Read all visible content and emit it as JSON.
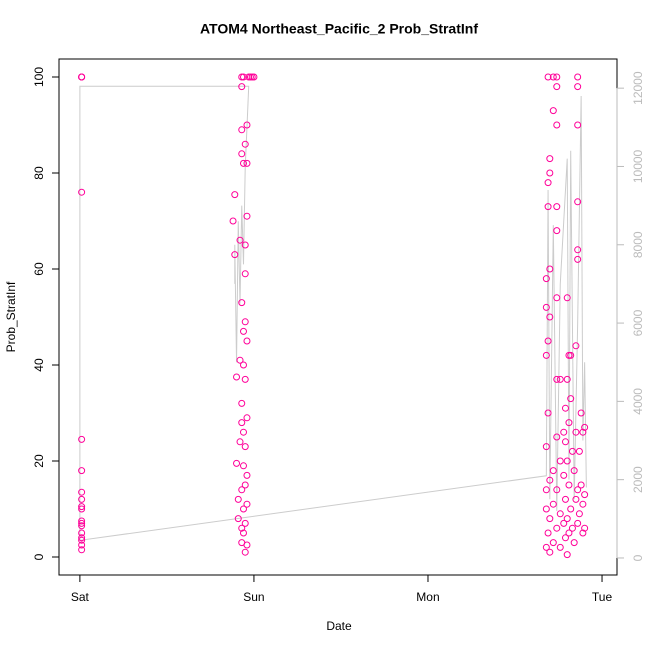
{
  "chart_data": {
    "type": "scatter",
    "title": "ATOM4 Northeast_Pacific_2 Prob_StratInf",
    "x_label": "Date",
    "y_label": "Prob_StratInf",
    "xlim": [
      -0.12,
      3.086
    ],
    "xticks": [
      {
        "value": 0,
        "label": "Sat"
      },
      {
        "value": 1,
        "label": "Sun"
      },
      {
        "value": 2,
        "label": "Mon"
      },
      {
        "value": 3,
        "label": "Tue"
      }
    ],
    "ylim": [
      -3.75,
      103.75
    ],
    "yticks": [
      0,
      20,
      40,
      60,
      80,
      100
    ],
    "y2lim": [
      -435,
      12745
    ],
    "y2ticks": [
      0,
      2000,
      4000,
      6000,
      8000,
      10000,
      12000
    ],
    "y2_tick_color": "#bbbbbb",
    "series": [
      {
        "color": "#ff0099",
        "x": [
          0.01,
          0.01,
          0.01,
          0.01,
          0.01,
          0.01,
          0.01,
          0.01,
          0.01,
          0.01,
          0.01,
          0.01,
          0.01,
          0.01,
          0.01,
          0.01,
          0.01,
          0.01,
          0.88,
          0.89,
          0.89,
          0.9,
          0.9,
          0.91,
          0.91,
          0.92,
          0.92,
          0.92,
          0.93,
          0.93,
          0.93,
          0.93,
          0.93,
          0.93,
          0.93,
          0.93,
          0.93,
          0.93,
          0.94,
          0.94,
          0.94,
          0.94,
          0.94,
          0.94,
          0.94,
          0.94,
          0.95,
          0.95,
          0.95,
          0.95,
          0.95,
          0.95,
          0.95,
          0.95,
          0.95,
          0.96,
          0.96,
          0.96,
          0.96,
          0.96,
          0.96,
          0.96,
          0.96,
          0.97,
          0.98,
          0.99,
          1.0,
          2.68,
          2.68,
          2.68,
          2.68,
          2.68,
          2.68,
          2.68,
          2.69,
          2.69,
          2.69,
          2.69,
          2.69,
          2.69,
          2.7,
          2.7,
          2.7,
          2.7,
          2.7,
          2.7,
          2.7,
          2.72,
          2.72,
          2.72,
          2.72,
          2.72,
          2.74,
          2.74,
          2.74,
          2.74,
          2.74,
          2.74,
          2.74,
          2.74,
          2.74,
          2.74,
          2.76,
          2.76,
          2.76,
          2.76,
          2.78,
          2.78,
          2.78,
          2.79,
          2.79,
          2.79,
          2.79,
          2.8,
          2.8,
          2.8,
          2.8,
          2.8,
          2.81,
          2.81,
          2.81,
          2.81,
          2.82,
          2.82,
          2.82,
          2.83,
          2.83,
          2.84,
          2.84,
          2.85,
          2.85,
          2.85,
          2.86,
          2.86,
          2.86,
          2.86,
          2.86,
          2.86,
          2.86,
          2.86,
          2.87,
          2.87,
          2.88,
          2.88,
          2.89,
          2.89,
          2.89,
          2.9,
          2.9,
          2.9
        ],
        "values": [
          100,
          100,
          100,
          76,
          24.5,
          18,
          13.5,
          12,
          10.5,
          10,
          7.5,
          7,
          6.5,
          5,
          4,
          3.5,
          2.5,
          1.5,
          70,
          75.5,
          63,
          37.5,
          19.5,
          12,
          8,
          66,
          41,
          24,
          100,
          98,
          89,
          84,
          53,
          32,
          28,
          14,
          6,
          3,
          100,
          82,
          47,
          40,
          26,
          19,
          10,
          5,
          86,
          65,
          59,
          49,
          37,
          23,
          15,
          7,
          1,
          90,
          82,
          71,
          45,
          29,
          17,
          11,
          2.5,
          100,
          100,
          100,
          100,
          58,
          52,
          42,
          23,
          14,
          10,
          2,
          100,
          78,
          73,
          45,
          30,
          5,
          83,
          80,
          60,
          50,
          16,
          8,
          1,
          100,
          93,
          18,
          11,
          3,
          100,
          98,
          90,
          73,
          68,
          54,
          37,
          25,
          14,
          6,
          37,
          20,
          9,
          2,
          26,
          17,
          7,
          31,
          24,
          12,
          4,
          54,
          37,
          20,
          8,
          0.5,
          42,
          28,
          15,
          5,
          42,
          33,
          10,
          22,
          6,
          18,
          3,
          44,
          26,
          12,
          100,
          98,
          90,
          74,
          64,
          62,
          14,
          7,
          22,
          9,
          30,
          15,
          26,
          11,
          5,
          27,
          13,
          6
        ]
      },
      {
        "color": "#cccccc",
        "axis": "y2",
        "x": [
          0.89,
          0.89,
          0.9,
          0.91,
          0.92,
          0.93,
          0.94,
          0.95,
          0.96,
          0.97,
          0.0,
          0.0,
          2.68,
          2.69,
          2.7,
          2.72,
          2.74,
          2.76,
          2.8,
          2.81,
          2.82,
          2.84,
          2.86,
          2.88,
          2.89,
          2.9,
          2.91
        ],
        "values": [
          7000,
          8000,
          5000,
          8600,
          6500,
          9000,
          7500,
          10000,
          11000,
          12050,
          12050,
          450,
          2100,
          9400,
          1500,
          8500,
          1200,
          7000,
          10200,
          2000,
          10400,
          1500,
          6000,
          11800,
          3000,
          5000,
          1800
        ]
      }
    ]
  }
}
